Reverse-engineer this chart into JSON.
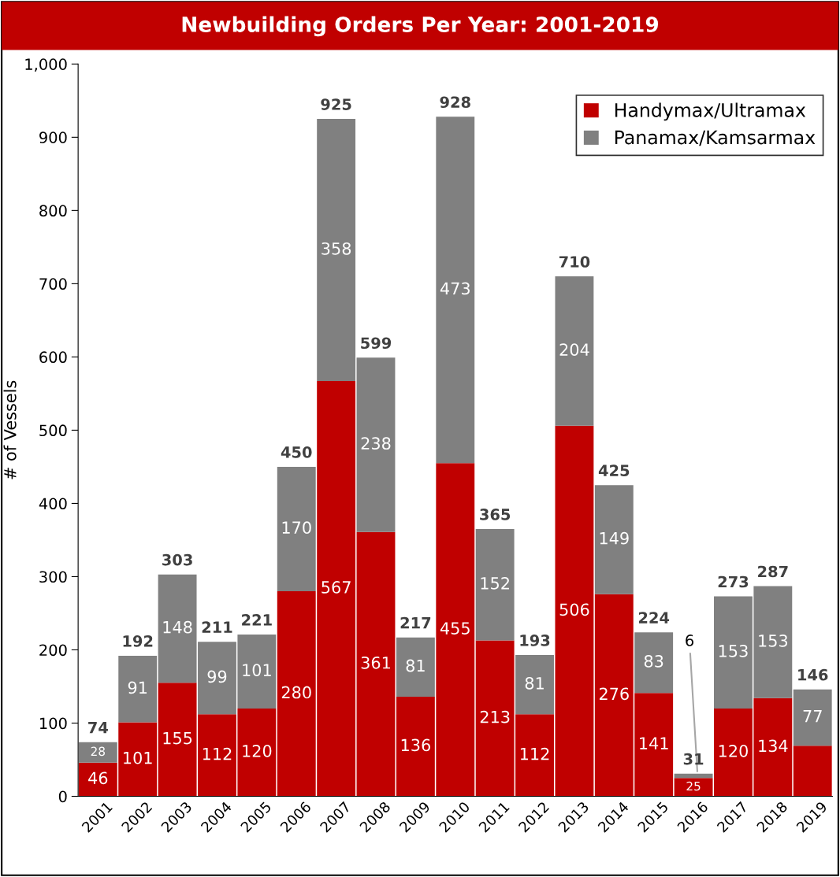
{
  "chart_data": {
    "type": "bar",
    "title": "Newbuilding Orders Per Year: 2001-2019",
    "ylabel": "# of Vessels",
    "categories": [
      "2001",
      "2002",
      "2003",
      "2004",
      "2005",
      "2006",
      "2007",
      "2008",
      "2009",
      "2010",
      "2011",
      "2012",
      "2013",
      "2014",
      "2015",
      "2016",
      "2017",
      "2018",
      "2019"
    ],
    "stacked": true,
    "series": [
      {
        "name": "Handymax/Ultramax",
        "color": "#c00000",
        "values": [
          46,
          101,
          155,
          112,
          120,
          280,
          567,
          361,
          136,
          455,
          213,
          112,
          506,
          276,
          141,
          25,
          120,
          134,
          69
        ],
        "value_labels": [
          "46",
          "101",
          "155",
          "112",
          "120",
          "280",
          "567",
          "361",
          "136",
          "455",
          "213",
          "112",
          "506",
          "276",
          "141",
          "25",
          "120",
          "134",
          null
        ]
      },
      {
        "name": "Panamax/Kamsarmax",
        "color": "#808080",
        "values": [
          28,
          91,
          148,
          99,
          101,
          170,
          358,
          238,
          81,
          473,
          152,
          81,
          204,
          149,
          83,
          6,
          153,
          153,
          77
        ],
        "value_labels": [
          "28",
          "91",
          "148",
          "99",
          "101",
          "170",
          "358",
          "238",
          "81",
          "473",
          "152",
          "81",
          "204",
          "149",
          "83",
          "6",
          "153",
          "153",
          "77"
        ]
      }
    ],
    "totals": [
      "74",
      "192",
      "303",
      "211",
      "221",
      "450",
      "925",
      "599",
      "217",
      "928",
      "365",
      "193",
      "710",
      "425",
      "224",
      "31",
      "273",
      "287",
      "146"
    ],
    "ylim": [
      0,
      1000
    ],
    "yticks": [
      0,
      100,
      200,
      300,
      400,
      500,
      600,
      700,
      800,
      900,
      {
        "value": 1000,
        "label": "1,000"
      }
    ],
    "grid": false,
    "legend": "top right"
  }
}
